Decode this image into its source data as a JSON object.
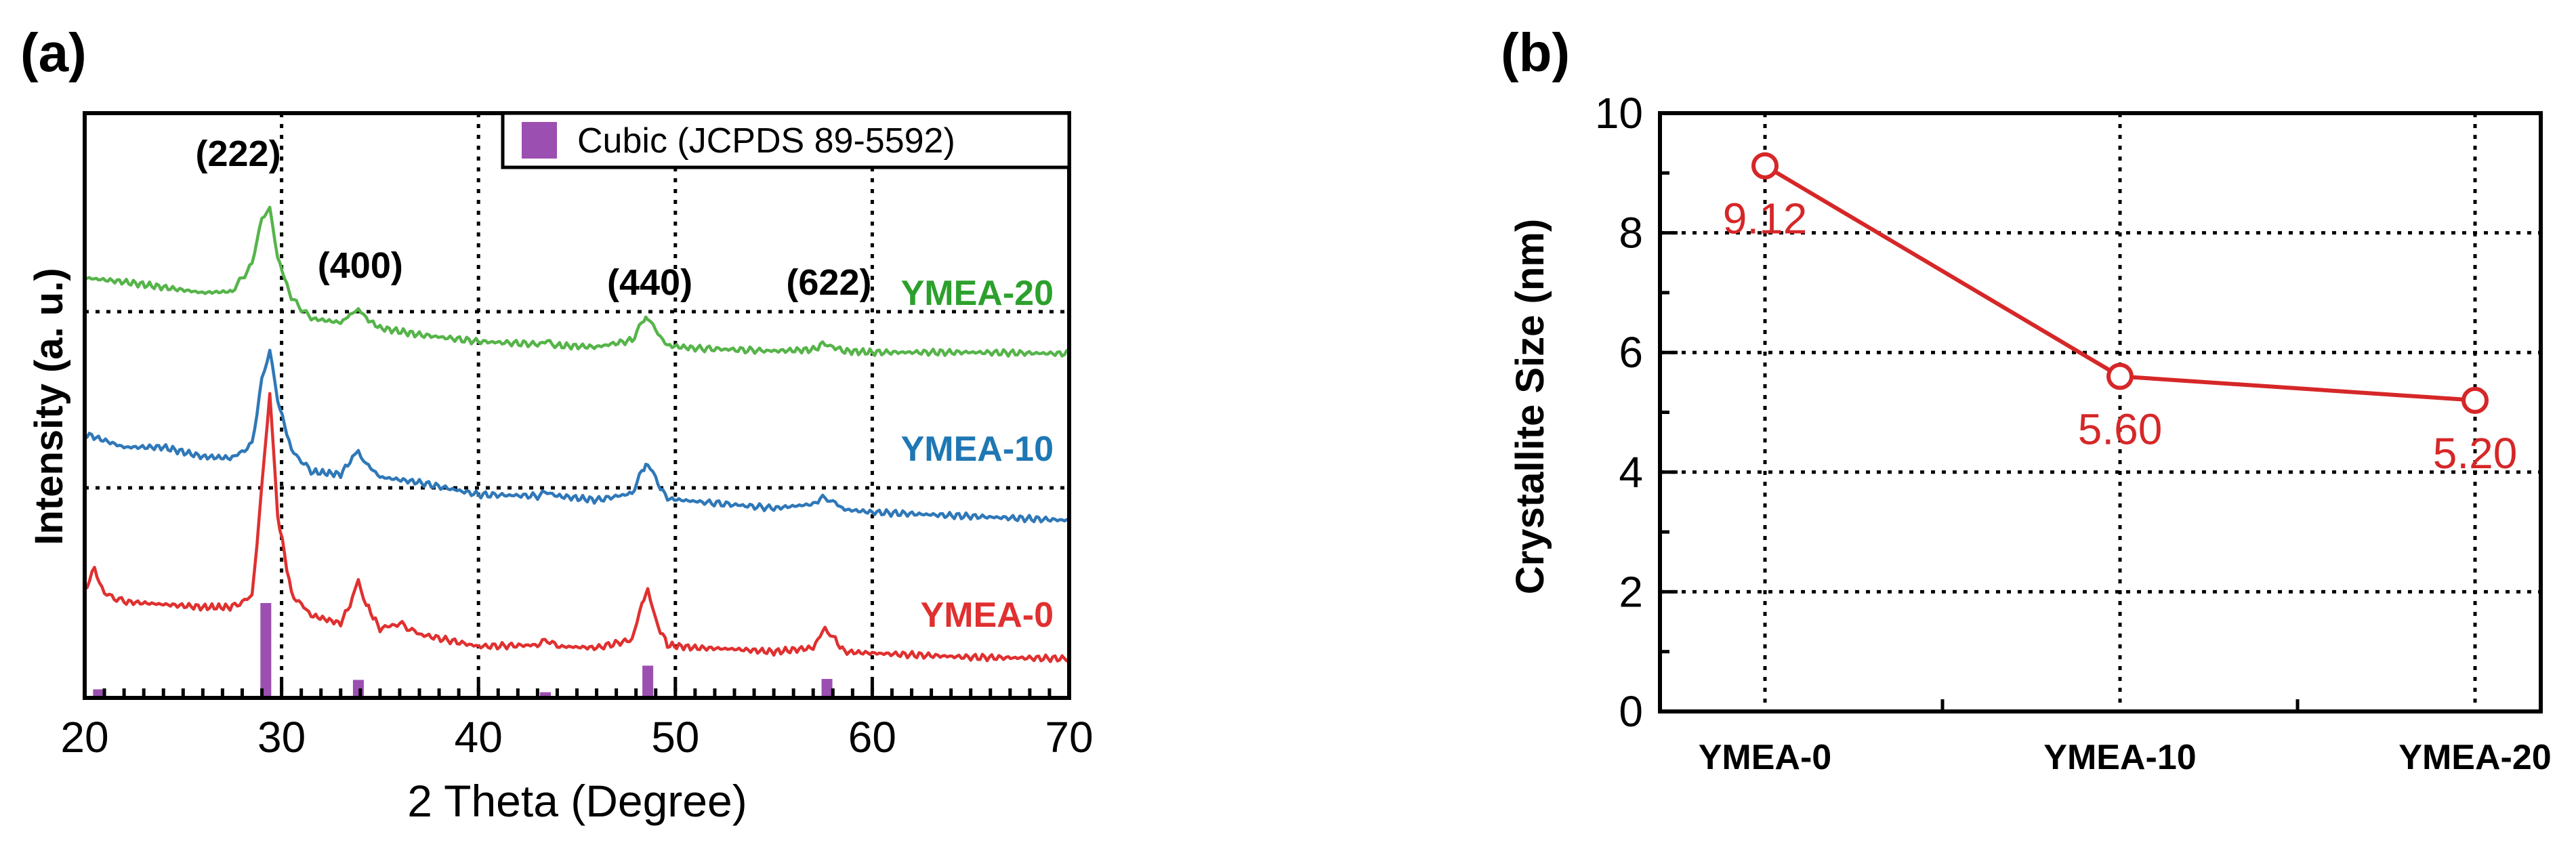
{
  "chart_data": [
    {
      "panel": "(a)",
      "type": "line",
      "xlabel": "2 Theta (Degree)",
      "ylabel": "Intensity (a. u.)",
      "xlim": [
        20,
        70
      ],
      "xticks": [
        "20",
        "30",
        "40",
        "50",
        "60",
        "70"
      ],
      "grid": true,
      "legend": {
        "label": "Cubic (JCPDS 89-5592)",
        "color": "#9b4fb0",
        "placement": "top-right"
      },
      "peak_labels": [
        {
          "text": "(222)",
          "x": 29.0
        },
        {
          "text": "(400)",
          "x": 34.0
        },
        {
          "text": "(440)",
          "x": 48.7
        },
        {
          "text": "(622)",
          "x": 57.8
        }
      ],
      "series": [
        {
          "name": "YMEA-0",
          "color": "#e03030",
          "baseline": 0,
          "x": [
            20.0,
            20.5,
            21.0,
            22.0,
            24.0,
            26.0,
            27.5,
            28.5,
            29.0,
            29.4,
            29.8,
            30.5,
            31.5,
            33.0,
            33.6,
            33.9,
            34.3,
            35.0,
            36.0,
            37.0,
            40.0,
            43.0,
            43.5,
            44.0,
            46.0,
            47.8,
            48.3,
            48.6,
            49.0,
            49.6,
            51.0,
            53.0,
            55.0,
            57.0,
            57.6,
            58.0,
            58.6,
            60.0,
            65.0,
            70.0
          ],
          "y": [
            0.55,
            0.7,
            0.52,
            0.46,
            0.44,
            0.42,
            0.42,
            0.5,
            1.3,
            2.0,
            1.1,
            0.52,
            0.36,
            0.3,
            0.48,
            0.62,
            0.44,
            0.26,
            0.3,
            0.22,
            0.13,
            0.14,
            0.18,
            0.13,
            0.12,
            0.18,
            0.44,
            0.55,
            0.32,
            0.14,
            0.12,
            0.11,
            0.09,
            0.12,
            0.27,
            0.2,
            0.09,
            0.08,
            0.05,
            0.04
          ]
        },
        {
          "name": "YMEA-10",
          "color": "#2f78b8",
          "baseline": 1.3,
          "x": [
            20.0,
            22.0,
            24.0,
            26.0,
            27.5,
            28.5,
            29.0,
            29.4,
            29.8,
            30.5,
            31.5,
            33.0,
            33.6,
            33.9,
            34.3,
            35.0,
            37.0,
            40.0,
            43.0,
            43.5,
            44.0,
            46.0,
            47.8,
            48.3,
            48.6,
            49.0,
            49.6,
            51.0,
            55.0,
            57.0,
            57.6,
            58.0,
            58.6,
            60.0,
            65.0,
            70.0
          ],
          "y": [
            1.7,
            1.6,
            1.6,
            1.53,
            1.52,
            1.62,
            2.1,
            2.3,
            1.95,
            1.58,
            1.42,
            1.4,
            1.52,
            1.58,
            1.48,
            1.38,
            1.34,
            1.25,
            1.24,
            1.27,
            1.24,
            1.21,
            1.26,
            1.42,
            1.48,
            1.36,
            1.22,
            1.2,
            1.15,
            1.18,
            1.24,
            1.2,
            1.14,
            1.12,
            1.09,
            1.06
          ]
        },
        {
          "name": "YMEA-20",
          "color": "#56b44a",
          "baseline": 2.6,
          "x": [
            20.0,
            22.0,
            24.0,
            26.0,
            27.5,
            28.5,
            29.0,
            29.4,
            29.8,
            30.5,
            31.5,
            33.0,
            33.6,
            33.9,
            34.3,
            35.0,
            37.0,
            40.0,
            43.0,
            43.5,
            44.0,
            46.0,
            47.8,
            48.3,
            48.6,
            49.0,
            49.6,
            51.0,
            55.0,
            57.0,
            57.6,
            58.0,
            58.6,
            60.0,
            65.0,
            70.0
          ],
          "y": [
            2.85,
            2.82,
            2.78,
            2.74,
            2.75,
            2.95,
            3.3,
            3.35,
            3.0,
            2.7,
            2.55,
            2.52,
            2.59,
            2.63,
            2.55,
            2.48,
            2.43,
            2.38,
            2.36,
            2.38,
            2.35,
            2.34,
            2.39,
            2.52,
            2.56,
            2.46,
            2.35,
            2.33,
            2.31,
            2.32,
            2.37,
            2.34,
            2.31,
            2.3,
            2.3,
            2.29
          ]
        }
      ],
      "reference_bars": {
        "x": [
          20.7,
          29.2,
          33.9,
          43.4,
          48.6,
          57.7
        ],
        "relative_intensity": [
          0.09,
          1.0,
          0.19,
          0.06,
          0.34,
          0.2
        ]
      },
      "series_labels": [
        {
          "text": "YMEA-20",
          "color": "#2ca02c"
        },
        {
          "text": "YMEA-10",
          "color": "#1f77b4"
        },
        {
          "text": "YMEA-0",
          "color": "#e03030"
        }
      ]
    },
    {
      "panel": "(b)",
      "type": "line",
      "categories": [
        "YMEA-0",
        "YMEA-10",
        "YMEA-20"
      ],
      "values": [
        9.12,
        5.6,
        5.2
      ],
      "data_labels": [
        "9.12",
        "5.60",
        "5.20"
      ],
      "ylabel": "Crystallite Size (nm)",
      "ylim": [
        0,
        10
      ],
      "yticks": [
        "0",
        "2",
        "4",
        "6",
        "8",
        "10"
      ],
      "grid": true,
      "color": "#d62728"
    }
  ]
}
